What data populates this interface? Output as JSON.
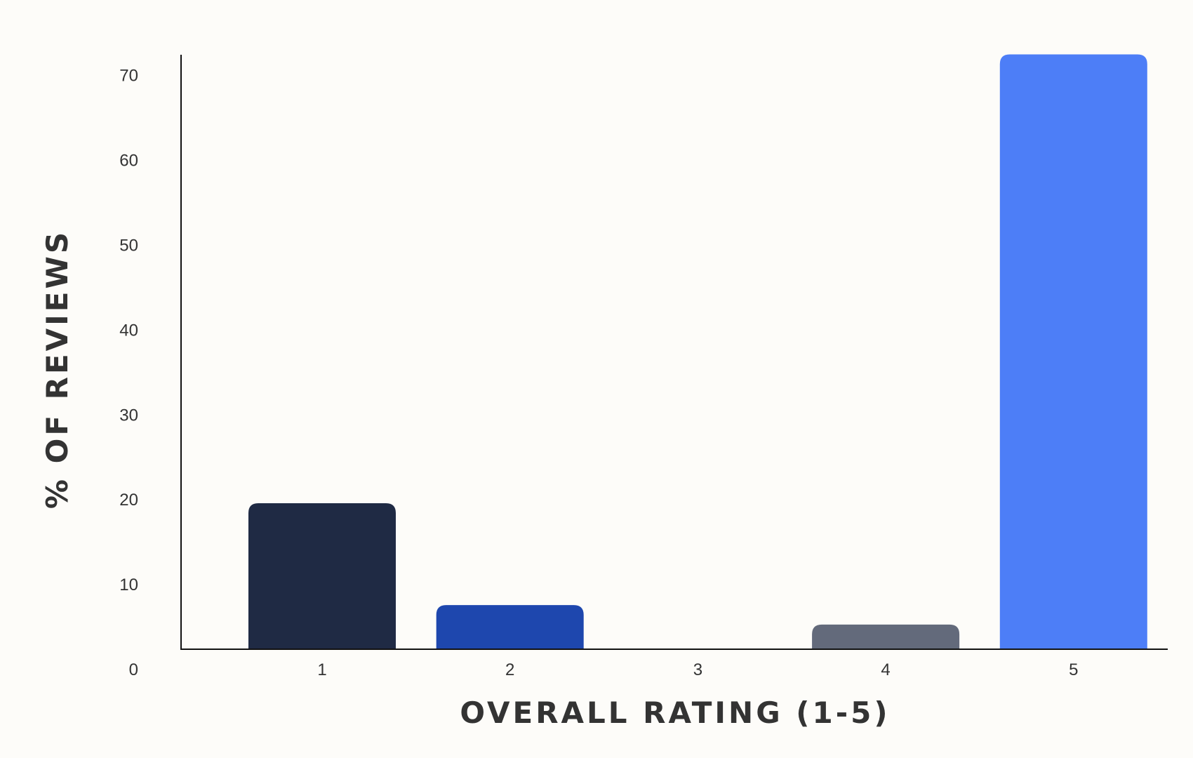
{
  "chart_data": {
    "type": "bar",
    "title": "",
    "xlabel": "OVERALL RATING (1-5)",
    "ylabel": "% OF REVIEWS",
    "categories": [
      "1",
      "2",
      "3",
      "4",
      "5"
    ],
    "values": [
      19.6,
      7.6,
      0,
      5.3,
      72.5
    ],
    "colors": [
      "#1f2a44",
      "#1e47ae",
      "#888888",
      "#636a7b",
      "#4d7ef7"
    ],
    "yticks": [
      "0",
      "10",
      "20",
      "30",
      "40",
      "50",
      "60",
      "70"
    ],
    "ylim": [
      0,
      72.5
    ],
    "grid": false,
    "legend": "none"
  }
}
